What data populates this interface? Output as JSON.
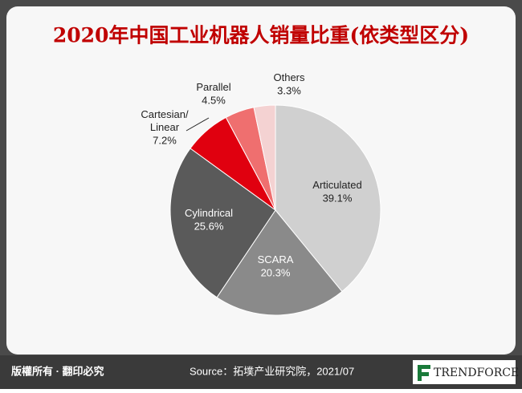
{
  "chart_data": {
    "type": "pie",
    "title": "2020年中国工业机器人销量比重(依类型区分)",
    "categories": [
      "Articulated",
      "SCARA",
      "Cylindrical",
      "Cartesian/\nLinear",
      "Parallel",
      "Others"
    ],
    "values": [
      39.1,
      20.3,
      25.6,
      7.2,
      4.5,
      3.3
    ],
    "value_labels": [
      "39.1%",
      "20.3%",
      "25.6%",
      "7.2%",
      "4.5%",
      "3.3%"
    ],
    "colors": [
      "#d0d0d0",
      "#8a8a8a",
      "#5a5a5a",
      "#e0000f",
      "#ef6f6f",
      "#f4d2d2"
    ]
  },
  "footer": {
    "rights": "版權所有 · 翻印必究",
    "source": "Source：拓墣产业研究院，2021/07",
    "logo": "TRENDFORCE"
  }
}
